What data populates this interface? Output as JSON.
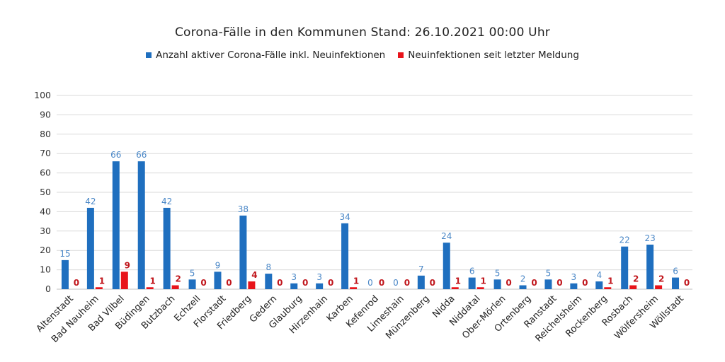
{
  "chart_data": {
    "type": "bar",
    "title": "Corona-Fälle in den Kommunen Stand: 26.10.2021 00:00 Uhr",
    "categories": [
      "Altenstadt",
      "Bad Nauheim",
      "Bad Vilbel",
      "Büdingen",
      "Butzbach",
      "Echzell",
      "Florstadt",
      "Friedberg",
      "Gedern",
      "Glauburg",
      "Hirzenhain",
      "Karben",
      "Kefenrod",
      "Limeshain",
      "Münzenberg",
      "Nidda",
      "Niddatal",
      "Ober-Mörlen",
      "Ortenberg",
      "Ranstadt",
      "Reichelsheim",
      "Rockenberg",
      "Rosbach",
      "Wölfersheim",
      "Wöllstadt"
    ],
    "series": [
      {
        "name": "Anzahl aktiver Corona-Fälle inkl. Neuinfektionen",
        "color": "#1f6fbf",
        "label_color": "#4a87c7",
        "values": [
          15,
          42,
          66,
          66,
          42,
          5,
          9,
          38,
          8,
          3,
          3,
          34,
          0,
          0,
          7,
          24,
          6,
          5,
          2,
          5,
          3,
          4,
          22,
          23,
          6
        ]
      },
      {
        "name": "Neuinfektionen seit letzter Meldung",
        "color": "#e8141b",
        "label_color": "#c0161c",
        "values": [
          0,
          1,
          9,
          1,
          2,
          0,
          0,
          4,
          0,
          0,
          0,
          1,
          0,
          0,
          0,
          1,
          1,
          0,
          0,
          0,
          0,
          1,
          2,
          2,
          0
        ]
      }
    ],
    "ylim": [
      0,
      100
    ],
    "yticks": [
      0,
      10,
      20,
      30,
      40,
      50,
      60,
      70,
      80,
      90,
      100
    ],
    "xlabel": "",
    "ylabel": "",
    "grid": true,
    "legend_position": "top"
  }
}
